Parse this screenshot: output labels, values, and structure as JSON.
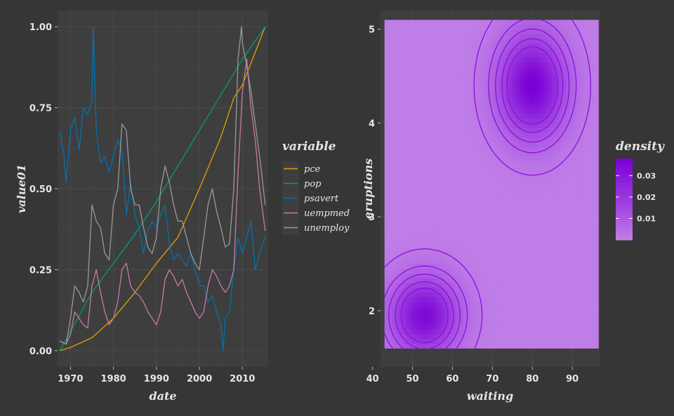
{
  "chart_data": [
    {
      "type": "line",
      "xlabel": "date",
      "ylabel": "value01",
      "xlim": [
        1967,
        2016
      ],
      "ylim": [
        -0.05,
        1.05
      ],
      "x_ticks": [
        1970,
        1980,
        1990,
        2000,
        2010
      ],
      "x_tick_labels": [
        "1970",
        "1980",
        "1990",
        "2000",
        "2010"
      ],
      "y_ticks": [
        0,
        0.25,
        0.5,
        0.75,
        1
      ],
      "y_tick_labels": [
        "0.00",
        "0.25",
        "0.50",
        "0.75",
        "1.00"
      ],
      "grid": true,
      "legend": {
        "title": "variable",
        "placement": "right"
      },
      "series": [
        {
          "name": "pce",
          "color": "#E69F00",
          "x": [
            1967.5,
            1970,
            1975,
            1980,
            1985,
            1990,
            1995,
            2000,
            2005,
            2008,
            2010,
            2015.3
          ],
          "y": [
            0,
            0.01,
            0.04,
            0.1,
            0.18,
            0.27,
            0.35,
            0.5,
            0.66,
            0.78,
            0.82,
            1.0
          ]
        },
        {
          "name": "pop",
          "color": "#009E73",
          "x": [
            1967.5,
            1975,
            1980,
            1985,
            1990,
            1995,
            2000,
            2005,
            2010,
            2015.3
          ],
          "y": [
            0,
            0.18,
            0.27,
            0.36,
            0.46,
            0.57,
            0.68,
            0.79,
            0.9,
            1.0
          ]
        },
        {
          "name": "psavert",
          "color": "#0072B2",
          "x": [
            1967.5,
            1968.5,
            1969,
            1970,
            1971,
            1972,
            1973,
            1974,
            1975,
            1975.3,
            1976,
            1977,
            1978,
            1979,
            1980,
            1981,
            1982,
            1983,
            1984,
            1985,
            1986,
            1987,
            1988,
            1989,
            1990,
            1991,
            1992,
            1993,
            1994,
            1995,
            1996,
            1997,
            1998,
            1999,
            2000,
            2001,
            2002,
            2003,
            2004,
            2005,
            2005.5,
            2006,
            2007,
            2008,
            2009,
            2010,
            2011,
            2012,
            2013,
            2014,
            2015.3
          ],
          "y": [
            0.68,
            0.6,
            0.52,
            0.68,
            0.72,
            0.62,
            0.75,
            0.73,
            0.77,
            1.0,
            0.68,
            0.58,
            0.6,
            0.55,
            0.6,
            0.65,
            0.62,
            0.42,
            0.52,
            0.42,
            0.38,
            0.3,
            0.37,
            0.4,
            0.38,
            0.42,
            0.45,
            0.33,
            0.28,
            0.3,
            0.28,
            0.26,
            0.3,
            0.25,
            0.2,
            0.2,
            0.15,
            0.17,
            0.12,
            0.08,
            0.0,
            0.1,
            0.12,
            0.25,
            0.35,
            0.3,
            0.35,
            0.4,
            0.25,
            0.3,
            0.35
          ]
        },
        {
          "name": "uempmed",
          "color": "#CC79A7",
          "x": [
            1967.5,
            1969,
            1970,
            1971,
            1972,
            1973,
            1974,
            1975,
            1976,
            1977,
            1978,
            1979,
            1980,
            1981,
            1982,
            1983,
            1984,
            1985,
            1986,
            1987,
            1988,
            1989,
            1990,
            1991,
            1992,
            1993,
            1994,
            1995,
            1996,
            1997,
            1998,
            1999,
            2000,
            2001,
            2002,
            2003,
            2004,
            2005,
            2006,
            2007,
            2008,
            2009,
            2010,
            2011,
            2012,
            2013,
            2014,
            2015.3
          ],
          "y": [
            0.03,
            0.02,
            0.05,
            0.12,
            0.1,
            0.08,
            0.07,
            0.2,
            0.25,
            0.18,
            0.12,
            0.08,
            0.1,
            0.15,
            0.25,
            0.27,
            0.2,
            0.18,
            0.17,
            0.15,
            0.12,
            0.1,
            0.08,
            0.12,
            0.22,
            0.25,
            0.23,
            0.2,
            0.22,
            0.18,
            0.15,
            0.12,
            0.1,
            0.12,
            0.2,
            0.25,
            0.23,
            0.2,
            0.18,
            0.2,
            0.25,
            0.55,
            0.8,
            0.9,
            0.75,
            0.65,
            0.5,
            0.37
          ]
        },
        {
          "name": "unemploy",
          "color": "#999999",
          "x": [
            1967.5,
            1969,
            1970,
            1971,
            1972,
            1973,
            1974,
            1975,
            1976,
            1977,
            1978,
            1979,
            1980,
            1981,
            1982,
            1983,
            1984,
            1985,
            1986,
            1987,
            1988,
            1989,
            1990,
            1991,
            1992,
            1993,
            1994,
            1995,
            1996,
            1997,
            1998,
            1999,
            2000,
            2001,
            2002,
            2003,
            2004,
            2005,
            2006,
            2007,
            2008,
            2009,
            2009.8,
            2010,
            2011,
            2012,
            2013,
            2014,
            2015.3
          ],
          "y": [
            0.03,
            0.02,
            0.1,
            0.2,
            0.18,
            0.15,
            0.2,
            0.45,
            0.4,
            0.38,
            0.3,
            0.28,
            0.45,
            0.5,
            0.7,
            0.68,
            0.5,
            0.45,
            0.45,
            0.38,
            0.32,
            0.3,
            0.35,
            0.5,
            0.57,
            0.52,
            0.45,
            0.4,
            0.4,
            0.35,
            0.3,
            0.27,
            0.25,
            0.35,
            0.45,
            0.5,
            0.43,
            0.38,
            0.32,
            0.33,
            0.5,
            0.9,
            1.0,
            0.95,
            0.88,
            0.8,
            0.7,
            0.6,
            0.45
          ]
        }
      ]
    },
    {
      "type": "heatmap",
      "xlabel": "waiting",
      "ylabel": "eruptions",
      "xlim": [
        42,
        97
      ],
      "ylim": [
        1.4,
        5.2
      ],
      "x_ticks": [
        40,
        50,
        60,
        70,
        80,
        90
      ],
      "x_tick_labels": [
        "40",
        "50",
        "60",
        "70",
        "80",
        "90"
      ],
      "y_ticks": [
        2,
        3,
        4,
        5
      ],
      "y_tick_labels": [
        "2",
        "3",
        "4",
        "5"
      ],
      "grid": true,
      "fill_range": {
        "x": [
          43,
          96.5
        ],
        "y": [
          1.6,
          5.1
        ]
      },
      "low_color": "#c283e8",
      "high_color": "#7a00d6",
      "contour_color": "#8a0fe0",
      "peaks": [
        {
          "x": 80,
          "y": 4.4,
          "sx": 5.5,
          "sy": 0.36,
          "w": 0.037
        },
        {
          "x": 53,
          "y": 1.95,
          "sx": 5.5,
          "sy": 0.27,
          "w": 0.034
        }
      ],
      "contour_levels": [
        0.002,
        0.006,
        0.01,
        0.015,
        0.02
      ],
      "legend": {
        "title": "density",
        "placement": "right",
        "ticks": [
          0.01,
          0.02,
          0.03
        ],
        "tick_labels": [
          "0.01",
          "0.02",
          "0.03"
        ],
        "range": [
          0.0,
          0.038
        ]
      }
    }
  ]
}
